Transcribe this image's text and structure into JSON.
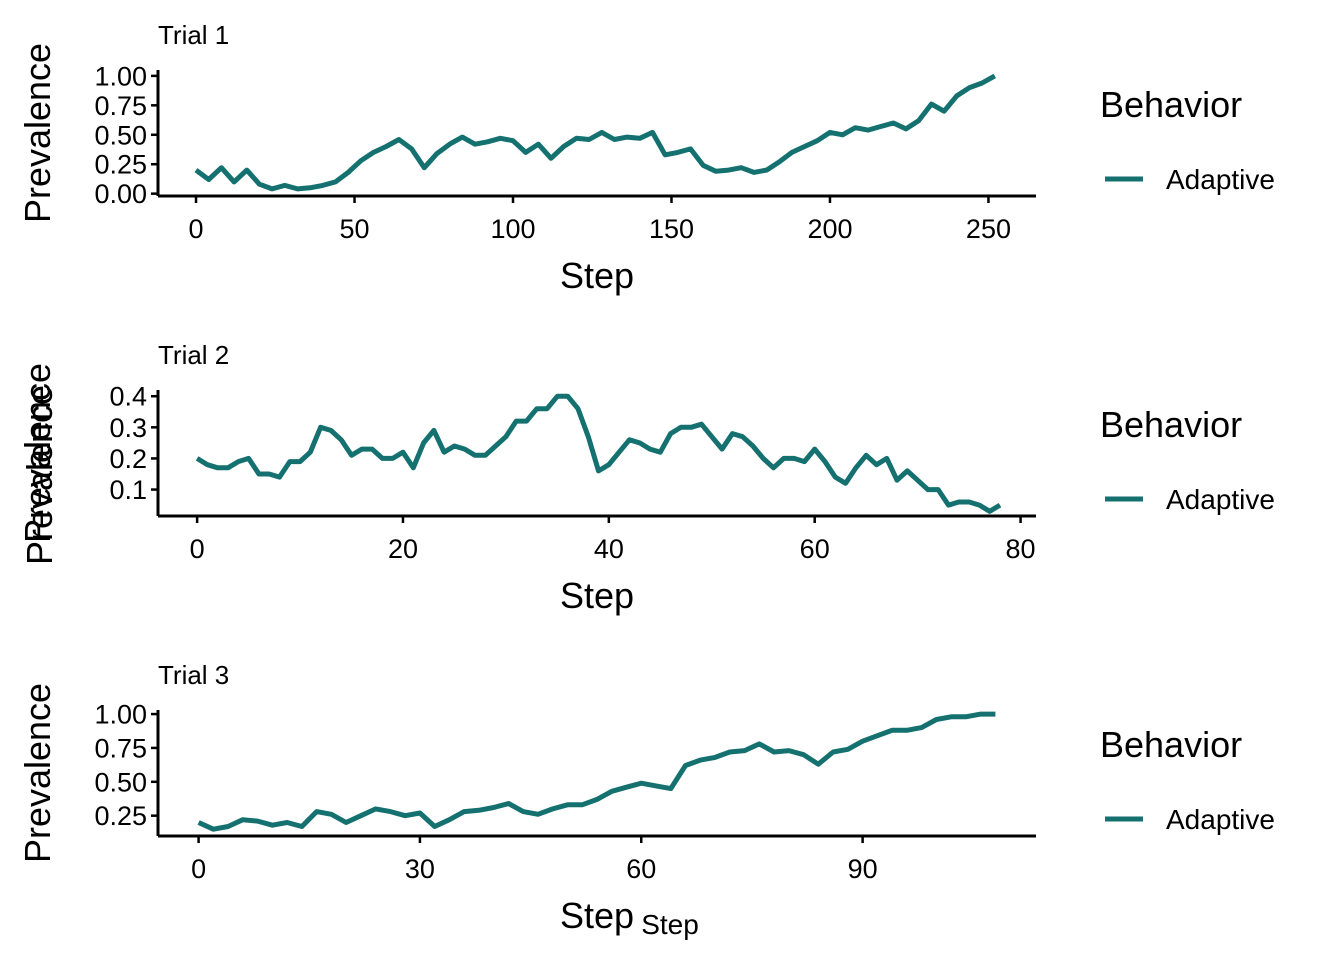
{
  "colors": {
    "adaptive": "#14716f",
    "background": "#ffffff",
    "axis": "#000000"
  },
  "stray_labels": {
    "y": "Prevalence",
    "x": "Step"
  },
  "chart_data": [
    {
      "type": "line",
      "title": "Trial 1",
      "xlabel": "Step",
      "ylabel": "Prevalence",
      "xlim": [
        -12,
        265
      ],
      "ylim": [
        -0.02,
        1.05
      ],
      "x_ticks": [
        0,
        50,
        100,
        150,
        200,
        250
      ],
      "x_tick_labels": [
        "0",
        "50",
        "100",
        "150",
        "200",
        "250"
      ],
      "y_ticks": [
        0,
        0.25,
        0.5,
        0.75,
        1.0
      ],
      "y_tick_labels": [
        "0.00",
        "0.25",
        "0.50",
        "0.75",
        "1.00"
      ],
      "grid": false,
      "legend": {
        "title": "Behavior",
        "position": "right"
      },
      "series": [
        {
          "name": "Adaptive",
          "color": "#14716f",
          "x": [
            0,
            4,
            8,
            12,
            16,
            20,
            24,
            28,
            32,
            36,
            40,
            44,
            48,
            52,
            56,
            60,
            64,
            68,
            72,
            76,
            80,
            84,
            88,
            92,
            96,
            100,
            104,
            108,
            112,
            116,
            120,
            124,
            128,
            132,
            136,
            140,
            144,
            148,
            152,
            156,
            160,
            164,
            168,
            172,
            176,
            180,
            184,
            188,
            192,
            196,
            200,
            204,
            208,
            212,
            216,
            220,
            224,
            228,
            232,
            236,
            240,
            244,
            248,
            252
          ],
          "y": [
            0.2,
            0.12,
            0.22,
            0.1,
            0.2,
            0.08,
            0.04,
            0.07,
            0.04,
            0.05,
            0.07,
            0.1,
            0.18,
            0.28,
            0.35,
            0.4,
            0.46,
            0.38,
            0.22,
            0.34,
            0.42,
            0.48,
            0.42,
            0.44,
            0.47,
            0.45,
            0.35,
            0.42,
            0.3,
            0.4,
            0.47,
            0.46,
            0.52,
            0.46,
            0.48,
            0.47,
            0.52,
            0.33,
            0.35,
            0.38,
            0.24,
            0.19,
            0.2,
            0.22,
            0.18,
            0.2,
            0.27,
            0.35,
            0.4,
            0.45,
            0.52,
            0.5,
            0.56,
            0.54,
            0.57,
            0.6,
            0.55,
            0.62,
            0.76,
            0.7,
            0.83,
            0.9,
            0.94,
            1.0
          ]
        }
      ]
    },
    {
      "type": "line",
      "title": "Trial 2",
      "xlabel": "Step",
      "ylabel": "Prevalence",
      "xlim": [
        -3.8,
        81.5
      ],
      "ylim": [
        0.015,
        0.42
      ],
      "x_ticks": [
        0,
        20,
        40,
        60,
        80
      ],
      "x_tick_labels": [
        "0",
        "20",
        "40",
        "60",
        "80"
      ],
      "y_ticks": [
        0.1,
        0.2,
        0.3,
        0.4
      ],
      "y_tick_labels": [
        "0.1",
        "0.2",
        "0.3",
        "0.4"
      ],
      "grid": false,
      "legend": {
        "title": "Behavior",
        "position": "right"
      },
      "series": [
        {
          "name": "Adaptive",
          "color": "#14716f",
          "x": [
            0,
            1,
            2,
            3,
            4,
            5,
            6,
            7,
            8,
            9,
            10,
            11,
            12,
            13,
            14,
            15,
            16,
            17,
            18,
            19,
            20,
            21,
            22,
            23,
            24,
            25,
            26,
            27,
            28,
            29,
            30,
            31,
            32,
            33,
            34,
            35,
            36,
            37,
            38,
            39,
            40,
            41,
            42,
            43,
            44,
            45,
            46,
            47,
            48,
            49,
            50,
            51,
            52,
            53,
            54,
            55,
            56,
            57,
            58,
            59,
            60,
            61,
            62,
            63,
            64,
            65,
            66,
            67,
            68,
            69,
            70,
            71,
            72,
            73,
            74,
            75,
            76,
            77,
            78
          ],
          "y": [
            0.2,
            0.18,
            0.17,
            0.17,
            0.19,
            0.2,
            0.15,
            0.15,
            0.14,
            0.19,
            0.19,
            0.22,
            0.3,
            0.29,
            0.26,
            0.21,
            0.23,
            0.23,
            0.2,
            0.2,
            0.22,
            0.17,
            0.25,
            0.29,
            0.22,
            0.24,
            0.23,
            0.21,
            0.21,
            0.24,
            0.27,
            0.32,
            0.32,
            0.36,
            0.36,
            0.4,
            0.4,
            0.36,
            0.27,
            0.16,
            0.18,
            0.22,
            0.26,
            0.25,
            0.23,
            0.22,
            0.28,
            0.3,
            0.3,
            0.31,
            0.27,
            0.23,
            0.28,
            0.27,
            0.24,
            0.2,
            0.17,
            0.2,
            0.2,
            0.19,
            0.23,
            0.19,
            0.14,
            0.12,
            0.17,
            0.21,
            0.18,
            0.2,
            0.13,
            0.16,
            0.13,
            0.1,
            0.1,
            0.05,
            0.06,
            0.06,
            0.05,
            0.03,
            0.05
          ]
        }
      ]
    },
    {
      "type": "line",
      "title": "Trial 3",
      "xlabel": "Step",
      "ylabel": "Prevalence",
      "xlim": [
        -5.5,
        113.5
      ],
      "ylim": [
        0.1,
        1.03
      ],
      "x_ticks": [
        0,
        30,
        60,
        90
      ],
      "x_tick_labels": [
        "0",
        "30",
        "60",
        "90"
      ],
      "y_ticks": [
        0.25,
        0.5,
        0.75,
        1.0
      ],
      "y_tick_labels": [
        "0.25",
        "0.50",
        "0.75",
        "1.00"
      ],
      "grid": false,
      "legend": {
        "title": "Behavior",
        "position": "right"
      },
      "series": [
        {
          "name": "Adaptive",
          "color": "#14716f",
          "x": [
            0,
            2,
            4,
            6,
            8,
            10,
            12,
            14,
            16,
            18,
            20,
            22,
            24,
            26,
            28,
            30,
            32,
            34,
            36,
            38,
            40,
            42,
            44,
            46,
            48,
            50,
            52,
            54,
            56,
            58,
            60,
            62,
            64,
            66,
            68,
            70,
            72,
            74,
            76,
            78,
            80,
            82,
            84,
            86,
            88,
            90,
            92,
            94,
            96,
            98,
            100,
            102,
            104,
            106,
            108
          ],
          "y": [
            0.2,
            0.15,
            0.17,
            0.22,
            0.21,
            0.18,
            0.2,
            0.17,
            0.28,
            0.26,
            0.2,
            0.25,
            0.3,
            0.28,
            0.25,
            0.27,
            0.17,
            0.22,
            0.28,
            0.29,
            0.31,
            0.34,
            0.28,
            0.26,
            0.3,
            0.33,
            0.33,
            0.37,
            0.43,
            0.46,
            0.49,
            0.47,
            0.45,
            0.62,
            0.66,
            0.68,
            0.72,
            0.73,
            0.78,
            0.72,
            0.73,
            0.7,
            0.63,
            0.72,
            0.74,
            0.8,
            0.84,
            0.88,
            0.88,
            0.9,
            0.96,
            0.98,
            0.98,
            1.0,
            1.0
          ]
        }
      ]
    }
  ]
}
